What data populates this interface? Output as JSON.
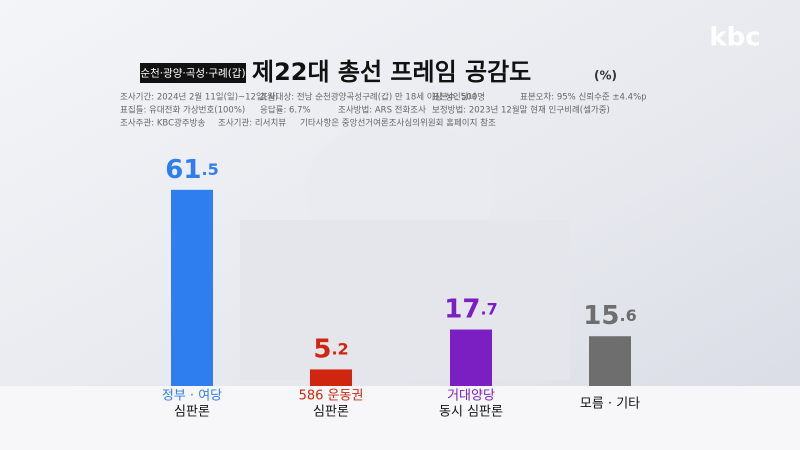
{
  "logo": "kbc",
  "chart_data": {
    "type": "bar",
    "tag": "순천·광양·곡성·구례(갑)",
    "title": "제22대 총선 프레임 공감도",
    "unit": "(%)",
    "notes": [
      [
        "조사기간: 2024년 2월 11일(일)~12일(월)",
        "조사대상: 전남 순천광양곡성구례(갑) 만 18세 이상 성인남녀",
        "표본수: 500명",
        "표본오차: 95% 신뢰수준 ±4.4%p"
      ],
      [
        "표집틀: 유대전화 가상번호(100%)",
        "응답률: 6.7%",
        "조사방법: ARS 전화조사",
        "보정방법: 2023년 12월말 현재 인구비례(셀가중)"
      ],
      [
        "조사주관: KBC광주방송",
        "조사기관: 리서치뷰",
        "기타사항은 중앙선거여론조사심의위원회 홈페이지 참조"
      ]
    ],
    "categories": [
      [
        "정부 · 여당",
        "심판론"
      ],
      [
        "586 운동권",
        "심판론"
      ],
      [
        "거대양당",
        "동시 심판론"
      ],
      [
        "모름 · 기타"
      ]
    ],
    "values": [
      61.5,
      5.2,
      17.7,
      15.6
    ],
    "colors": [
      "#2f7ef0",
      "#d0260f",
      "#7b1ec2",
      "#6e6e6e"
    ]
  }
}
